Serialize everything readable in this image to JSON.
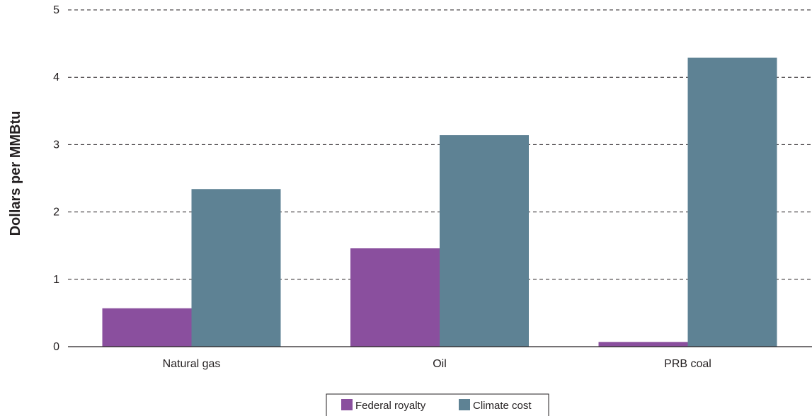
{
  "chart_data": {
    "type": "bar",
    "categories": [
      "Natural gas",
      "Oil",
      "PRB coal"
    ],
    "series": [
      {
        "name": "Federal royalty",
        "values": [
          0.57,
          1.46,
          0.07
        ],
        "color": "#8a4f9e"
      },
      {
        "name": "Climate cost",
        "values": [
          2.34,
          3.14,
          4.29
        ],
        "color": "#5e8294"
      }
    ],
    "title": "",
    "xlabel": "",
    "ylabel": "Dollars per MMBtu",
    "ylim": [
      0,
      5
    ],
    "yticks": [
      "0",
      "1",
      "2",
      "3",
      "4",
      "5"
    ],
    "grid": true,
    "legend_position": "bottom-center"
  }
}
